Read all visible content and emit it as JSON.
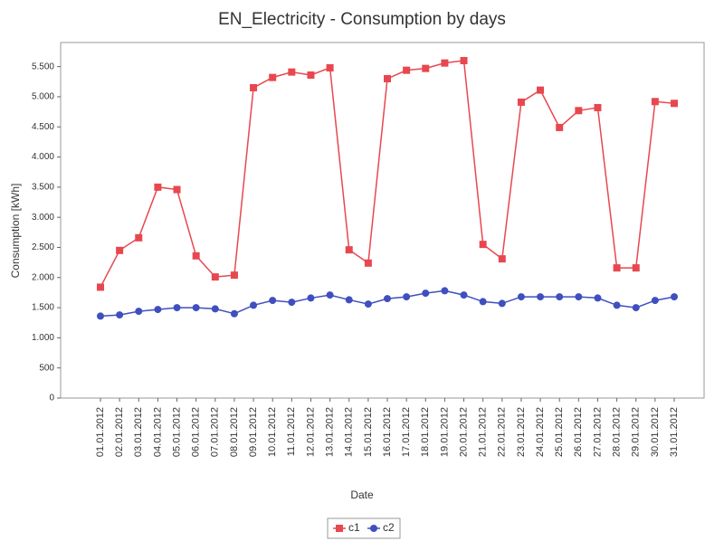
{
  "chart_data": {
    "type": "line",
    "title": "EN_Electricity - Consumption by days",
    "x_label": "Date",
    "y_label": "Consumption [kWh]",
    "categories": [
      "01.01.2012",
      "02.01.2012",
      "03.01.2012",
      "04.01.2012",
      "05.01.2012",
      "06.01.2012",
      "07.01.2012",
      "08.01.2012",
      "09.01.2012",
      "10.01.2012",
      "11.01.2012",
      "12.01.2012",
      "13.01.2012",
      "14.01.2012",
      "15.01.2012",
      "16.01.2012",
      "17.01.2012",
      "18.01.2012",
      "19.01.2012",
      "20.01.2012",
      "21.01.2012",
      "22.01.2012",
      "23.01.2012",
      "24.01.2012",
      "25.01.2012",
      "26.01.2012",
      "27.01.2012",
      "28.01.2012",
      "29.01.2012",
      "30.01.2012",
      "31.01.2012"
    ],
    "series": [
      {
        "name": "c1",
        "color": "#e8474f",
        "marker": "square",
        "values": [
          1840,
          2450,
          2660,
          3500,
          3460,
          2360,
          2010,
          2040,
          5150,
          5320,
          5410,
          5360,
          5480,
          2460,
          2240,
          5300,
          5440,
          5470,
          5560,
          5600,
          2550,
          2310,
          4910,
          5110,
          4490,
          4770,
          4820,
          2160,
          2160,
          4920,
          4890
        ]
      },
      {
        "name": "c2",
        "color": "#3f4fbf",
        "marker": "circle",
        "values": [
          1360,
          1380,
          1440,
          1470,
          1500,
          1500,
          1480,
          1400,
          1540,
          1620,
          1590,
          1660,
          1710,
          1630,
          1560,
          1650,
          1680,
          1740,
          1780,
          1710,
          1600,
          1570,
          1680,
          1680,
          1680,
          1680,
          1660,
          1540,
          1500,
          1620,
          1680
        ]
      }
    ],
    "ylim": [
      0,
      5900
    ],
    "yticks": [
      0,
      500,
      {
        "value": 1000,
        "label": "1.000"
      },
      {
        "value": 1500,
        "label": "1.500"
      },
      {
        "value": 2000,
        "label": "2.000"
      },
      {
        "value": 2500,
        "label": "2.500"
      },
      {
        "value": 3000,
        "label": "3.000"
      },
      {
        "value": 3500,
        "label": "3.500"
      },
      {
        "value": 4000,
        "label": "4.000"
      },
      {
        "value": 4500,
        "label": "4.500"
      },
      {
        "value": 5000,
        "label": "5.000"
      },
      {
        "value": 5500,
        "label": "5.500"
      }
    ],
    "grid": false,
    "legend": "bottom"
  }
}
